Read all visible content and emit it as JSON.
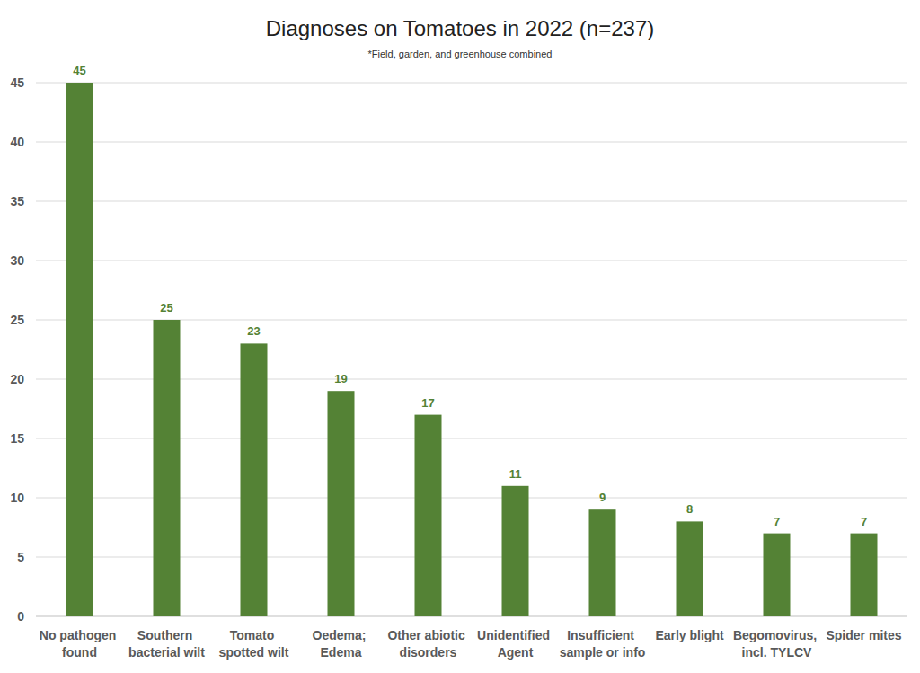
{
  "chart_data": {
    "type": "bar",
    "title": "Diagnoses on Tomatoes in 2022 (n=237)",
    "subtitle": "*Field, garden, and greenhouse combined",
    "categories": [
      "No pathogen found",
      "Southern bacterial wilt",
      "Tomato spotted wilt",
      "Oedema; Edema",
      "Other abiotic disorders",
      "Unidentified Agent",
      "Insufficient sample or info",
      "Early blight",
      "Begomovirus, incl. TYLCV",
      "Spider mites"
    ],
    "values": [
      45,
      25,
      23,
      19,
      17,
      11,
      9,
      8,
      7,
      7
    ],
    "color": "#548235",
    "ylim": [
      0,
      45
    ],
    "yticks": [
      0,
      5,
      10,
      15,
      20,
      25,
      30,
      35,
      40,
      45
    ],
    "grid": true,
    "data_labels": true
  }
}
